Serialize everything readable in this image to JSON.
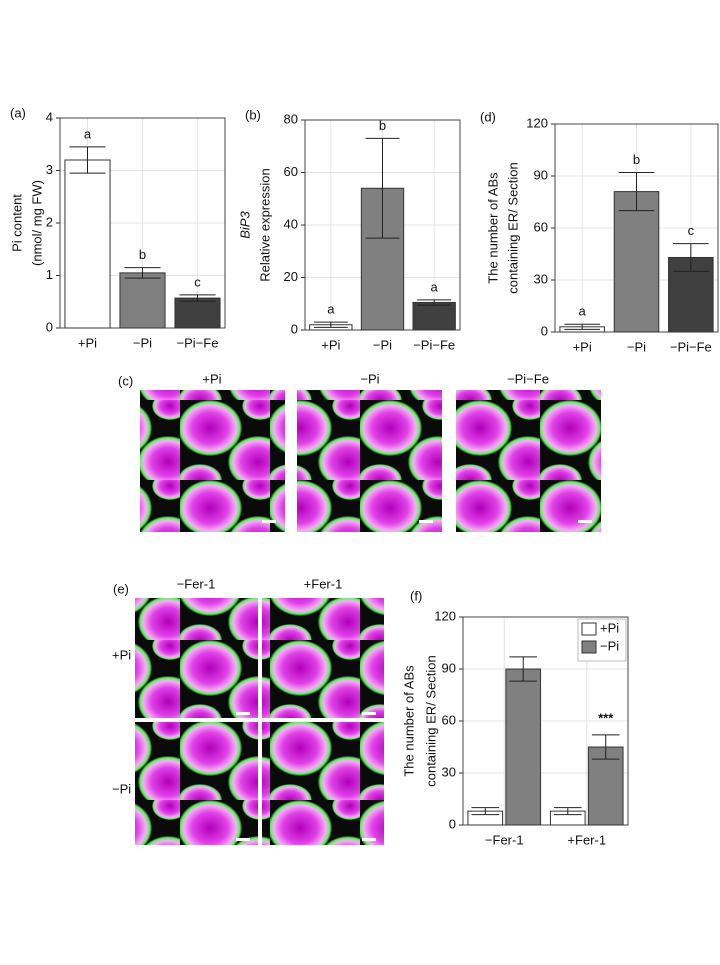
{
  "chart_data": [
    {
      "type": "bar",
      "panel": "(a)",
      "ylabel": [
        "Pi content",
        "(nmol/ mg FW)"
      ],
      "categories": [
        "+Pi",
        "−Pi",
        "−Pi−Fe"
      ],
      "values": [
        3.2,
        1.05,
        0.57
      ],
      "errors": [
        0.25,
        0.1,
        0.06
      ],
      "colors": [
        "#ffffff",
        "#808080",
        "#404040"
      ],
      "letters": [
        "a",
        "b",
        "c"
      ],
      "ylim": [
        0,
        4
      ],
      "yticks": [
        0,
        1,
        2,
        3,
        4
      ],
      "grid": true
    },
    {
      "type": "bar",
      "panel": "(b)",
      "ylabel": [
        "BiP3",
        "Relative expression"
      ],
      "categories": [
        "+Pi",
        "−Pi",
        "−Pi−Fe"
      ],
      "values": [
        2,
        54,
        10.5
      ],
      "errors": [
        1,
        19,
        1
      ],
      "colors": [
        "#ffffff",
        "#808080",
        "#404040"
      ],
      "letters": [
        "a",
        "b",
        "a"
      ],
      "ylim": [
        0,
        80
      ],
      "yticks": [
        0,
        20,
        40,
        60,
        80
      ],
      "grid": true
    },
    {
      "type": "bar",
      "panel": "(d)",
      "ylabel": [
        "The number of ABs",
        "containing ER/ Section"
      ],
      "categories": [
        "+Pi",
        "−Pi",
        "−Pi−Fe"
      ],
      "values": [
        3,
        81,
        43
      ],
      "errors": [
        1.5,
        11,
        8
      ],
      "colors": [
        "#ffffff",
        "#808080",
        "#404040"
      ],
      "letters": [
        "a",
        "b",
        "c"
      ],
      "ylim": [
        0,
        120
      ],
      "yticks": [
        0,
        30,
        60,
        90,
        120
      ],
      "grid": true
    },
    {
      "type": "grouped-bar",
      "panel": "(f)",
      "ylabel": [
        "The number of ABs",
        "containing ER/ Section"
      ],
      "categories": [
        "−Fer-1",
        "+Fer-1"
      ],
      "series": [
        {
          "name": "+Pi",
          "color": "#ffffff",
          "values": [
            8,
            8
          ],
          "errors": [
            2,
            2
          ]
        },
        {
          "name": "−Pi",
          "color": "#808080",
          "values": [
            90,
            45
          ],
          "errors": [
            7,
            7
          ]
        }
      ],
      "annotation": "***",
      "ylim": [
        0,
        120
      ],
      "yticks": [
        0,
        30,
        60,
        90,
        120
      ],
      "grid": true,
      "legend": "top-right"
    }
  ],
  "images": {
    "c": {
      "panel": "(c)",
      "columns": [
        "+Pi",
        "−Pi",
        "−Pi−Fe"
      ]
    },
    "e": {
      "panel": "(e)",
      "columns": [
        "−Fer-1",
        "+Fer-1"
      ],
      "rows": [
        "+Pi",
        "−Pi"
      ]
    }
  }
}
